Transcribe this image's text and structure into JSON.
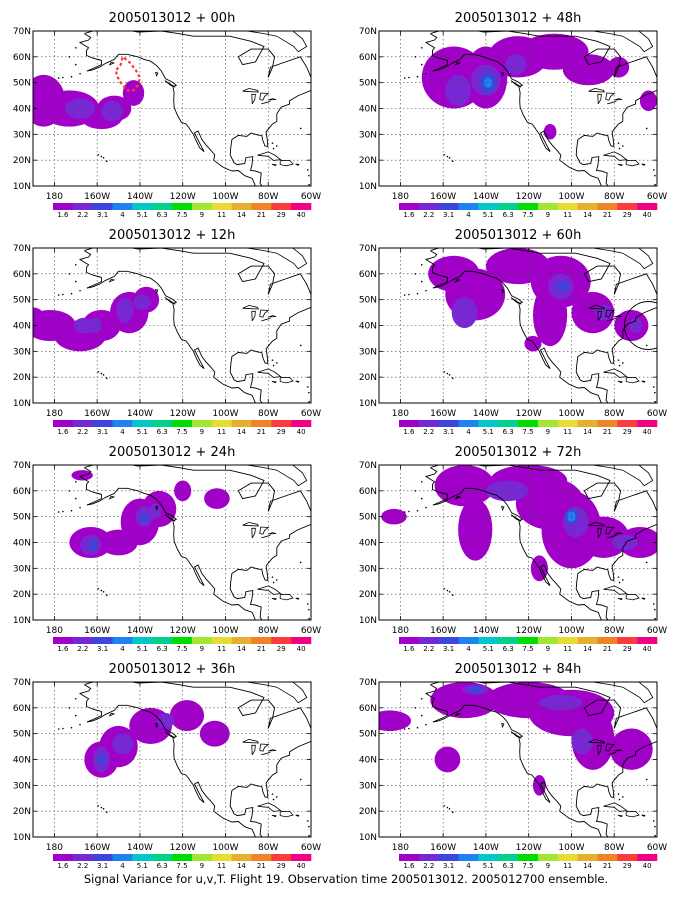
{
  "figure": {
    "caption": "Signal Variance for u,v,T. Flight 19. Observation time 2005013012. 2005012700 ensemble.",
    "colorbar": {
      "labels": [
        "1.6",
        "2.2",
        "3.1",
        "4",
        "5.1",
        "6.3",
        "7.5",
        "9",
        "11",
        "14",
        "21",
        "29",
        "40"
      ],
      "colors": [
        "#a000c8",
        "#7828d2",
        "#3c46dc",
        "#1e82f0",
        "#00c8c8",
        "#00d28c",
        "#00dc00",
        "#a0e632",
        "#e6dc32",
        "#e6af2d",
        "#f08228",
        "#fa3c3c",
        "#f00082"
      ]
    },
    "axes": {
      "lat_labels": [
        "70N",
        "60N",
        "50N",
        "40N",
        "30N",
        "20N",
        "10N"
      ],
      "lon_labels": [
        "180",
        "160W",
        "140W",
        "120W",
        "100W",
        "80W",
        "60W"
      ]
    },
    "panels": [
      {
        "title": "2005013012 + 00h"
      },
      {
        "title": "2005013012 + 12h"
      },
      {
        "title": "2005013012 + 24h"
      },
      {
        "title": "2005013012 + 36h"
      },
      {
        "title": "2005013012 + 48h"
      },
      {
        "title": "2005013012 + 60h"
      },
      {
        "title": "2005013012 + 72h"
      },
      {
        "title": "2005013012 + 84h"
      }
    ],
    "palette": {
      "outer": "#a000c8",
      "mid": "#7828d2",
      "inner": "#3c46dc",
      "core": "#1e82f0",
      "route": "#fa3c3c"
    }
  }
}
